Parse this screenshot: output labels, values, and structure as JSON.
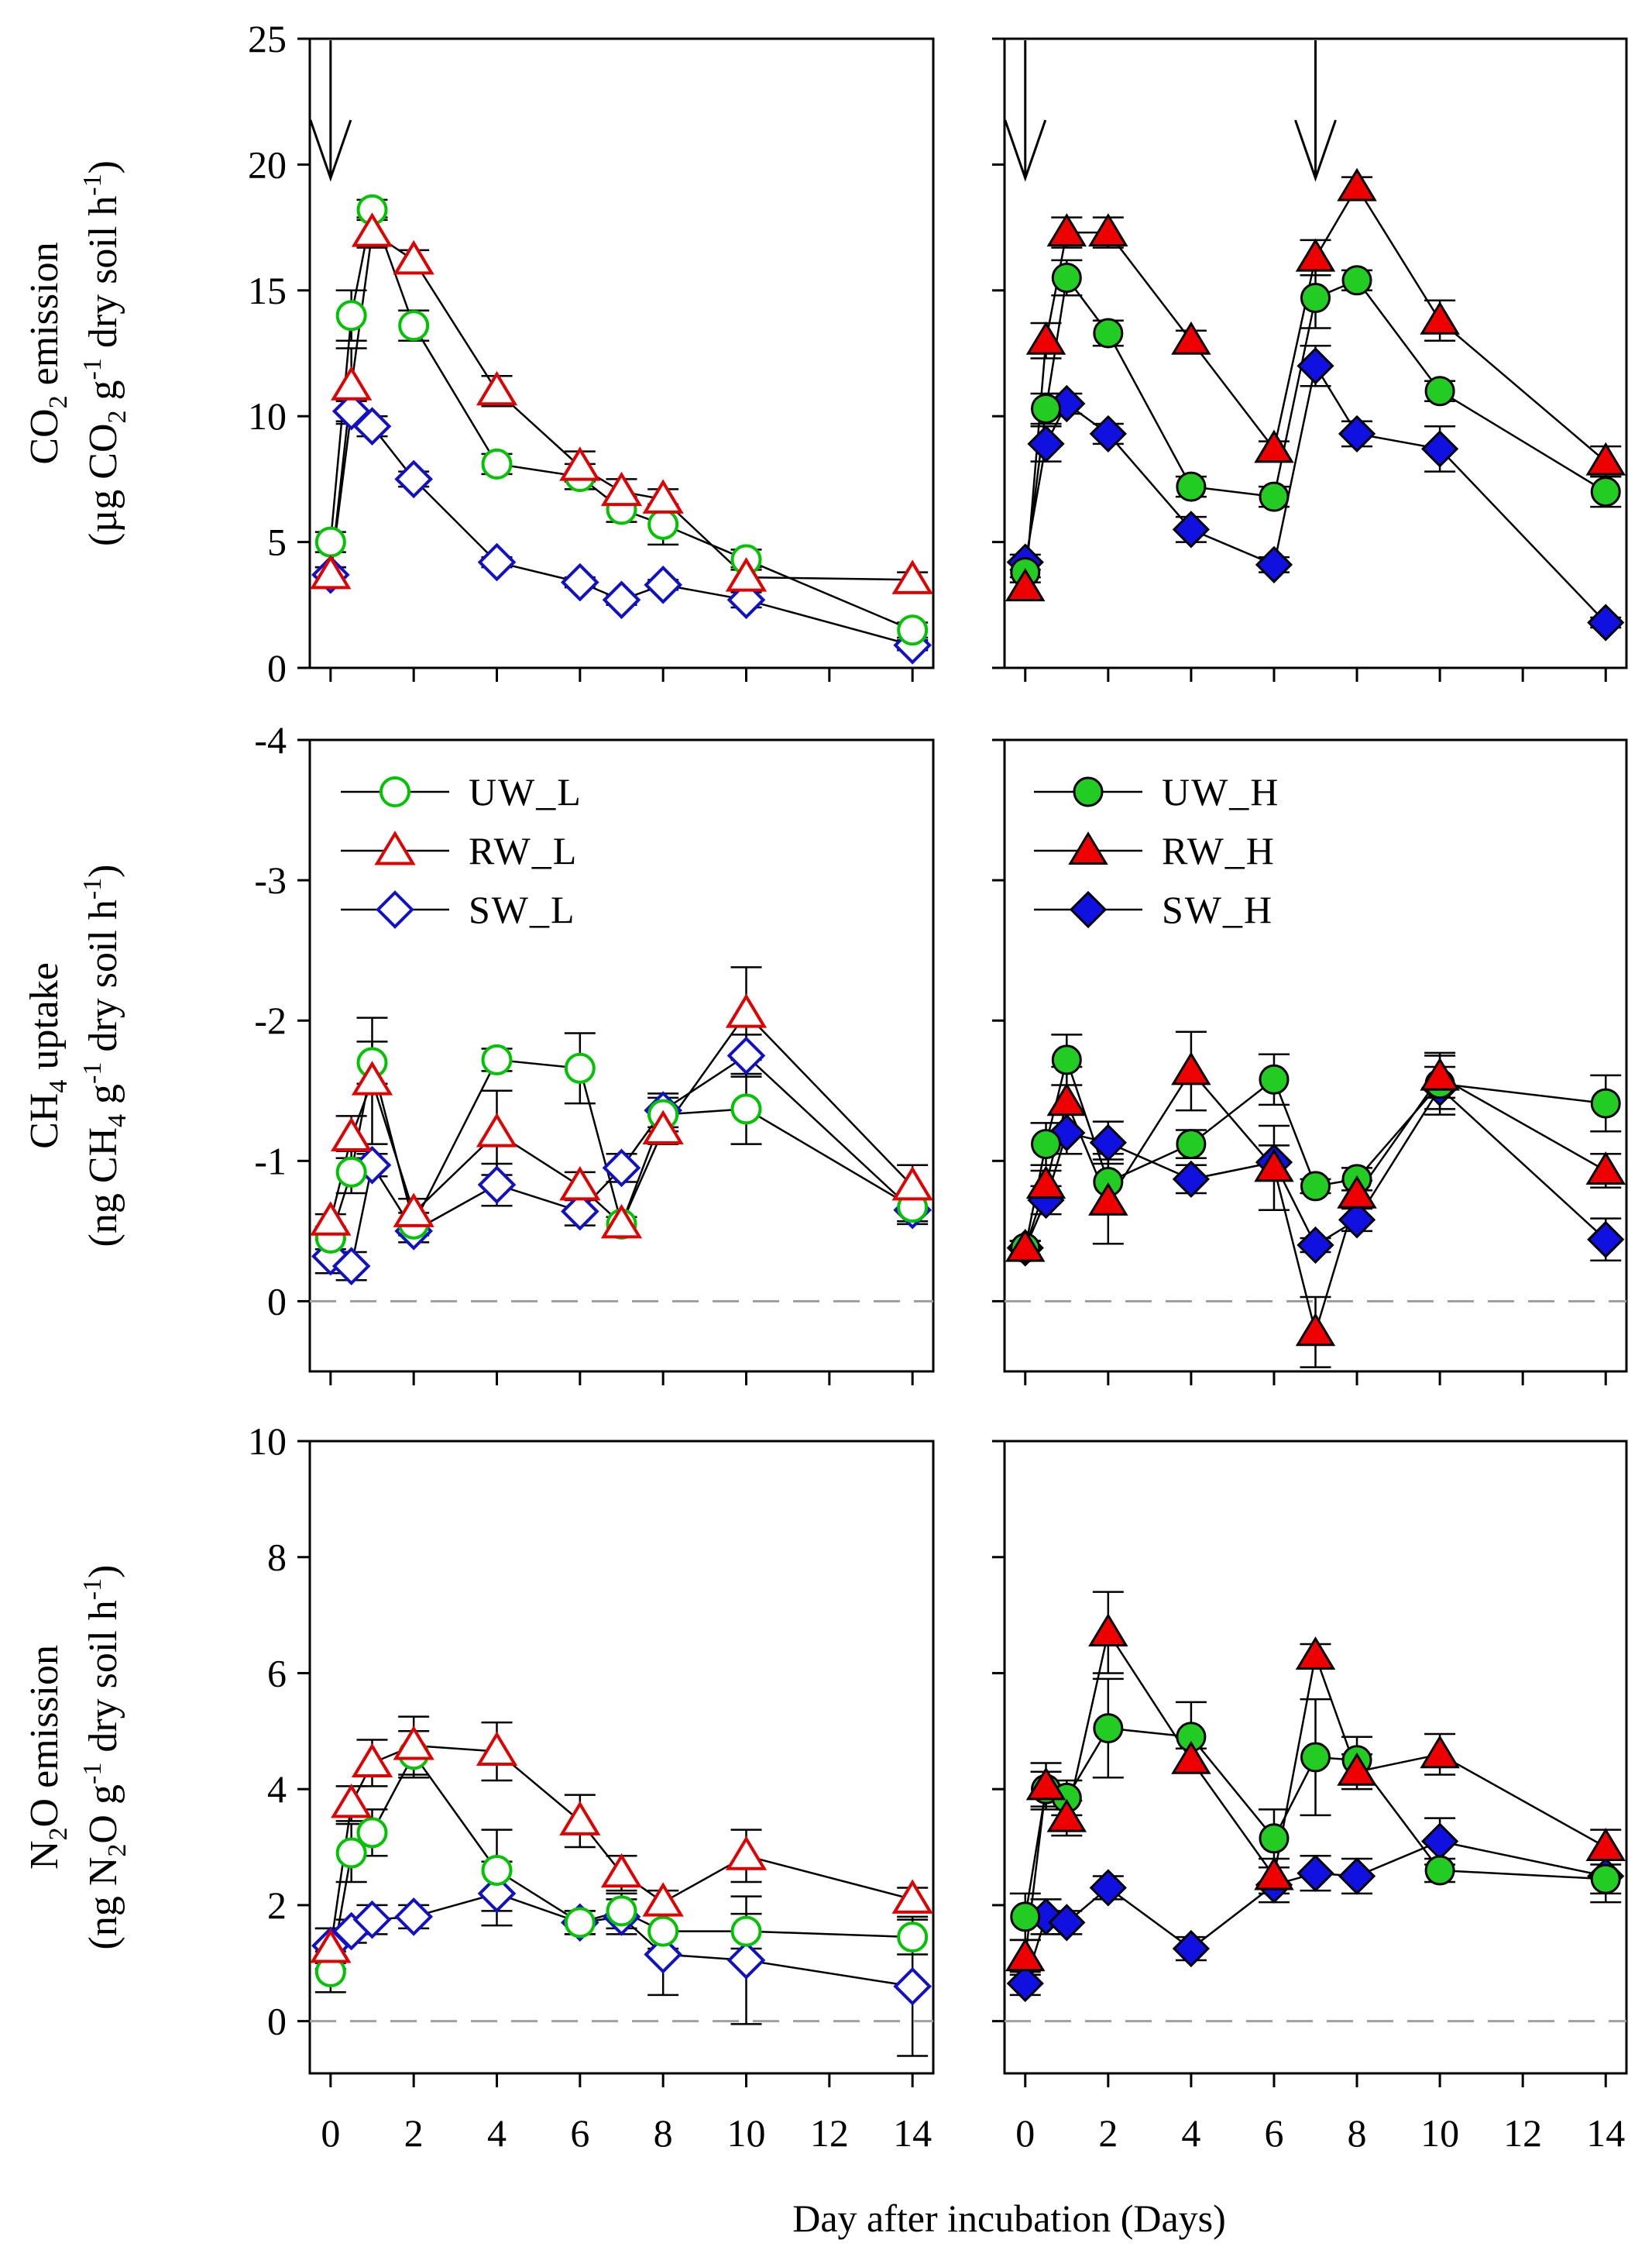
{
  "figure": {
    "xlabel": "Day after incubation (Days)",
    "legend_left": [
      "UW_L",
      "RW_L",
      "SW_L"
    ],
    "legend_right": [
      "UW_H",
      "RW_H",
      "SW_H"
    ]
  },
  "colors": {
    "UW": "#00c400",
    "RW": "#e00000",
    "SW": "#1010c8",
    "UW_fill": "#22cc22",
    "RW_fill": "#ee0000",
    "SW_fill": "#1010e0",
    "zero_line": "#a0a0a0"
  },
  "rows": [
    {
      "id": "co2",
      "ylabel_line1": [
        "CO",
        "2",
        " emission"
      ],
      "ylabel_line2": [
        "(µg CO",
        "2",
        " g",
        "-1",
        " dry soil h",
        "-1",
        ")"
      ],
      "ylim": [
        0,
        25
      ],
      "yticks": [
        0,
        5,
        10,
        15,
        20,
        25
      ],
      "zero_line": false
    },
    {
      "id": "ch4",
      "ylabel_line1": [
        "CH",
        "4",
        " uptake"
      ],
      "ylabel_line2": [
        "(ng CH",
        "4",
        " g",
        "-1",
        " dry soil h",
        "-1",
        ")"
      ],
      "ylim": [
        0.5,
        -4
      ],
      "yticks": [
        0,
        -1,
        -2,
        -3,
        -4
      ],
      "zero_line": true
    },
    {
      "id": "n2o",
      "ylabel_line1": [
        "N",
        "2",
        "O emission"
      ],
      "ylabel_line2": [
        "(ng N",
        "2",
        "O g",
        "-1",
        " dry soil h",
        "-1",
        ")"
      ],
      "ylim": [
        -0.9,
        10
      ],
      "yticks": [
        0,
        2,
        4,
        6,
        8,
        10
      ],
      "zero_line": true
    }
  ],
  "chart_data": [
    {
      "type": "line",
      "panel": "CO2 low (left)",
      "title": "",
      "xlabel": "Day after incubation (Days)",
      "ylabel": "CO2 emission (µg CO2 g-1 dry soil h-1)",
      "xlim": [
        -0.5,
        14.5
      ],
      "ylim": [
        0,
        25
      ],
      "xticks": [
        0,
        2,
        4,
        6,
        8,
        10,
        12,
        14
      ],
      "arrows_at_day": [
        0
      ],
      "series": [
        {
          "name": "UW_L",
          "x": [
            0,
            0.5,
            1,
            2,
            4,
            6,
            7,
            8,
            10,
            14
          ],
          "y": [
            5.0,
            14.0,
            18.2,
            13.6,
            8.1,
            7.6,
            6.3,
            5.7,
            4.3,
            1.5
          ],
          "err": [
            0.4,
            1.0,
            0.4,
            0.6,
            0.4,
            0.5,
            0.5,
            0.8,
            0.4,
            0.3
          ]
        },
        {
          "name": "RW_L",
          "x": [
            0,
            0.5,
            1,
            2,
            4,
            6,
            7,
            8,
            10,
            14
          ],
          "y": [
            3.7,
            11.2,
            17.3,
            16.2,
            11.0,
            8.0,
            7.0,
            6.7,
            3.6,
            3.5
          ],
          "err": [
            0.3,
            1.5,
            0.6,
            0.4,
            0.6,
            0.6,
            0.5,
            0.4,
            0.4,
            0.3
          ]
        },
        {
          "name": "SW_L",
          "x": [
            0,
            0.5,
            1,
            2,
            4,
            6,
            7,
            8,
            10,
            14
          ],
          "y": [
            3.7,
            10.2,
            9.6,
            7.5,
            4.2,
            3.4,
            2.7,
            3.3,
            2.7,
            0.9
          ],
          "err": [
            0.3,
            0.4,
            0.4,
            0.3,
            0.2,
            0.2,
            0.2,
            0.2,
            0.3,
            0.2
          ]
        }
      ]
    },
    {
      "type": "line",
      "panel": "CO2 high (right)",
      "title": "",
      "xlabel": "Day after incubation (Days)",
      "ylabel": "",
      "xlim": [
        -0.5,
        14.5
      ],
      "ylim": [
        0,
        25
      ],
      "xticks": [
        0,
        2,
        4,
        6,
        8,
        10,
        12,
        14
      ],
      "arrows_at_day": [
        0,
        7
      ],
      "series": [
        {
          "name": "UW_H",
          "x": [
            0,
            0.5,
            1,
            2,
            4,
            6,
            7,
            8,
            10,
            14
          ],
          "y": [
            3.8,
            10.3,
            15.5,
            13.3,
            7.2,
            6.8,
            14.7,
            15.4,
            11.0,
            7.0
          ],
          "err": [
            0.4,
            0.6,
            0.7,
            0.5,
            0.4,
            0.4,
            1.2,
            0.4,
            0.4,
            0.6
          ]
        },
        {
          "name": "RW_H",
          "x": [
            0,
            0.5,
            1,
            2,
            4,
            6,
            7,
            8,
            10,
            14
          ],
          "y": [
            3.2,
            13.0,
            17.3,
            17.3,
            13.0,
            8.7,
            16.3,
            19.1,
            13.8,
            8.2
          ],
          "err": [
            0.4,
            0.7,
            0.6,
            0.6,
            0.4,
            0.3,
            0.7,
            0.4,
            0.8,
            0.6
          ]
        },
        {
          "name": "SW_H",
          "x": [
            0,
            0.5,
            1,
            2,
            4,
            6,
            7,
            8,
            10,
            14
          ],
          "y": [
            4.2,
            8.9,
            10.5,
            9.3,
            5.5,
            4.1,
            12.0,
            9.3,
            8.7,
            1.8
          ],
          "err": [
            0.3,
            0.7,
            0.4,
            0.4,
            0.5,
            0.3,
            0.8,
            0.5,
            0.9,
            0.2
          ]
        }
      ]
    },
    {
      "type": "line",
      "panel": "CH4 low (left)",
      "title": "",
      "xlabel": "Day after incubation (Days)",
      "ylabel": "CH4 uptake (ng CH4 g-1 dry soil h-1)",
      "xlim": [
        -0.5,
        14.5
      ],
      "ylim": [
        0.5,
        -4
      ],
      "xticks": [
        0,
        2,
        4,
        6,
        8,
        10,
        12,
        14
      ],
      "series": [
        {
          "name": "UW_L",
          "x": [
            0,
            0.5,
            1,
            2,
            4,
            6,
            7,
            8,
            10,
            14
          ],
          "y": [
            -0.45,
            -0.92,
            -1.7,
            -0.55,
            -1.72,
            -1.66,
            -0.55,
            -1.33,
            -1.37,
            -0.67
          ],
          "err": [
            0.08,
            0.15,
            0.15,
            0.08,
            0.08,
            0.25,
            0.05,
            0.12,
            0.25,
            0.1
          ]
        },
        {
          "name": "RW_L",
          "x": [
            0,
            0.5,
            1,
            2,
            4,
            6,
            7,
            8,
            10,
            14
          ],
          "y": [
            -0.57,
            -1.17,
            -1.57,
            -0.63,
            -1.2,
            -0.82,
            -0.55,
            -1.22,
            -2.05,
            -0.82
          ],
          "err": [
            0.05,
            0.15,
            0.45,
            0.1,
            0.3,
            0.1,
            0.05,
            0.1,
            0.33,
            0.15
          ]
        },
        {
          "name": "SW_L",
          "x": [
            0,
            0.5,
            1,
            2,
            4,
            6,
            7,
            8,
            10,
            14
          ],
          "y": [
            -0.32,
            -0.25,
            -0.97,
            -0.5,
            -0.83,
            -0.64,
            -0.95,
            -1.36,
            -1.75,
            -0.65
          ],
          "err": [
            0.12,
            0.1,
            0.08,
            0.08,
            0.15,
            0.1,
            0.1,
            0.12,
            0.15,
            0.1
          ]
        }
      ]
    },
    {
      "type": "line",
      "panel": "CH4 high (right)",
      "title": "",
      "xlabel": "Day after incubation (Days)",
      "ylabel": "",
      "xlim": [
        -0.5,
        14.5
      ],
      "ylim": [
        0.5,
        -4
      ],
      "xticks": [
        0,
        2,
        4,
        6,
        8,
        10,
        12,
        14
      ],
      "series": [
        {
          "name": "UW_H",
          "x": [
            0,
            0.5,
            1,
            2,
            4,
            6,
            7,
            8,
            10,
            14
          ],
          "y": [
            -0.38,
            -1.12,
            -1.72,
            -0.85,
            -1.12,
            -1.58,
            -0.82,
            -0.87,
            -1.55,
            -1.41
          ],
          "err": [
            0.05,
            0.15,
            0.18,
            0.2,
            0.1,
            0.18,
            0.05,
            0.08,
            0.22,
            0.2
          ]
        },
        {
          "name": "RW_H",
          "x": [
            0,
            0.5,
            1,
            2,
            4,
            6,
            7,
            8,
            10,
            14
          ],
          "y": [
            -0.38,
            -0.83,
            -1.42,
            -0.71,
            -1.64,
            -0.95,
            0.22,
            -0.76,
            -1.6,
            -0.93
          ],
          "err": [
            0.05,
            0.1,
            0.25,
            0.3,
            0.28,
            0.3,
            0.25,
            0.1,
            0.15,
            0.12
          ]
        },
        {
          "name": "SW_H",
          "x": [
            0,
            0.5,
            1,
            2,
            4,
            6,
            7,
            8,
            10,
            14
          ],
          "y": [
            -0.38,
            -0.72,
            -1.2,
            -1.13,
            -0.87,
            -0.99,
            -0.4,
            -0.58,
            -1.52,
            -0.44
          ],
          "err": [
            0.05,
            0.1,
            0.15,
            0.15,
            0.1,
            0.12,
            0.05,
            0.08,
            0.15,
            0.15
          ]
        }
      ]
    },
    {
      "type": "line",
      "panel": "N2O low (left)",
      "title": "",
      "xlabel": "Day after incubation (Days)",
      "ylabel": "N2O emission (ng N2O g-1 dry soil h-1)",
      "xlim": [
        -0.5,
        14.5
      ],
      "ylim": [
        -0.9,
        10
      ],
      "xticks": [
        0,
        2,
        4,
        6,
        8,
        10,
        12,
        14
      ],
      "series": [
        {
          "name": "UW_L",
          "x": [
            0,
            0.5,
            1,
            2,
            4,
            6,
            7,
            8,
            10,
            14
          ],
          "y": [
            0.85,
            2.9,
            3.25,
            4.6,
            2.6,
            1.7,
            1.9,
            1.55,
            1.55,
            1.45
          ],
          "err": [
            0.35,
            0.5,
            0.4,
            0.4,
            0.7,
            0.2,
            0.3,
            0.3,
            0.3,
            0.3
          ]
        },
        {
          "name": "RW_L",
          "x": [
            0,
            0.5,
            1,
            2,
            4,
            6,
            7,
            8,
            10,
            14
          ],
          "y": [
            1.25,
            3.75,
            4.45,
            4.75,
            4.65,
            3.45,
            2.55,
            2.05,
            2.85,
            2.1
          ],
          "err": [
            0.35,
            0.3,
            0.4,
            0.5,
            0.5,
            0.45,
            0.3,
            0.2,
            0.45,
            0.2
          ]
        },
        {
          "name": "SW_L",
          "x": [
            0,
            0.5,
            1,
            2,
            4,
            6,
            7,
            8,
            10,
            14
          ],
          "y": [
            1.3,
            1.55,
            1.75,
            1.8,
            2.2,
            1.7,
            1.8,
            1.15,
            1.05,
            0.6
          ],
          "err": [
            0.3,
            0.2,
            0.25,
            0.2,
            0.55,
            0.2,
            0.3,
            0.7,
            1.1,
            1.2
          ]
        }
      ]
    },
    {
      "type": "line",
      "panel": "N2O high (right)",
      "title": "",
      "xlabel": "Day after incubation (Days)",
      "ylabel": "",
      "xlim": [
        -0.5,
        14.5
      ],
      "ylim": [
        -0.9,
        10
      ],
      "xticks": [
        0,
        2,
        4,
        6,
        8,
        10,
        12,
        14
      ],
      "series": [
        {
          "name": "UW_H",
          "x": [
            0,
            0.5,
            1,
            2,
            4,
            6,
            7,
            8,
            10,
            14
          ],
          "y": [
            1.8,
            4.0,
            3.85,
            5.05,
            4.9,
            3.15,
            4.55,
            4.5,
            2.6,
            2.45
          ],
          "err": [
            0.4,
            0.3,
            0.3,
            0.85,
            0.6,
            0.5,
            1.0,
            0.4,
            0.2,
            0.4
          ]
        },
        {
          "name": "RW_H",
          "x": [
            0,
            0.5,
            1,
            2,
            4,
            6,
            7,
            8,
            10,
            14
          ],
          "y": [
            1.1,
            4.05,
            3.5,
            6.7,
            4.5,
            2.5,
            6.3,
            4.3,
            4.6,
            3.0
          ],
          "err": [
            0.3,
            0.4,
            0.3,
            0.7,
            0.2,
            0.3,
            0.2,
            0.3,
            0.35,
            0.3
          ]
        },
        {
          "name": "SW_H",
          "x": [
            0,
            0.5,
            1,
            2,
            4,
            6,
            7,
            8,
            10,
            14
          ],
          "y": [
            0.65,
            1.8,
            1.7,
            2.3,
            1.25,
            2.35,
            2.55,
            2.5,
            3.1,
            2.5
          ],
          "err": [
            0.2,
            0.3,
            0.2,
            0.2,
            0.2,
            0.3,
            0.3,
            0.3,
            0.4,
            0.3
          ]
        }
      ]
    }
  ]
}
